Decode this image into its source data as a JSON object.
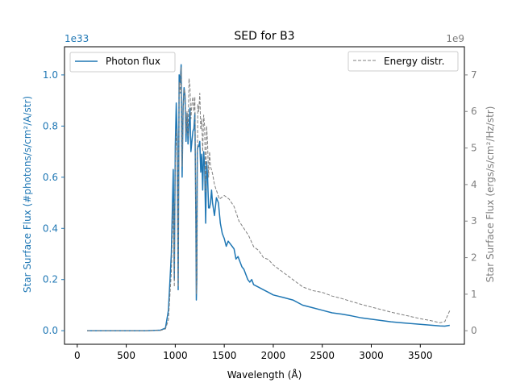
{
  "chart_data": {
    "type": "line",
    "title": "SED for B3",
    "xlabel": "Wavelength (Å)",
    "ylabel_left": "Star Surface Flux (#photons/s/cm²/A/str)",
    "ylabel_right": "Star Surface Flux (ergs/s/cm²/Hz/str)",
    "offset_left": "1e33",
    "offset_right": "1e9",
    "xlim": [
      -130,
      3950
    ],
    "ylim_left": [
      -0.053,
      1.11
    ],
    "ylim_right": [
      -0.37,
      7.77
    ],
    "x_ticks": [
      0,
      500,
      1000,
      1500,
      2000,
      2500,
      3000,
      3500
    ],
    "x_tick_labels": [
      "0",
      "500",
      "1000",
      "1500",
      "2000",
      "2500",
      "3000",
      "3500"
    ],
    "y_left_ticks": [
      0.0,
      0.2,
      0.4,
      0.6,
      0.8,
      1.0
    ],
    "y_left_tick_labels": [
      "0.0",
      "0.2",
      "0.4",
      "0.6",
      "0.8",
      "1.0"
    ],
    "y_right_ticks": [
      0,
      1,
      2,
      3,
      4,
      5,
      6,
      7
    ],
    "y_right_tick_labels": [
      "0",
      "1",
      "2",
      "3",
      "4",
      "5",
      "6",
      "7"
    ],
    "colors": {
      "left": "#1f77b4",
      "right": "#7f7f7f"
    },
    "series": [
      {
        "name": "Photon flux",
        "axis": "left",
        "style": "solid",
        "x": [
          100,
          300,
          500,
          700,
          850,
          900,
          930,
          960,
          980,
          990,
          1000,
          1010,
          1020,
          1030,
          1040,
          1050,
          1060,
          1070,
          1080,
          1090,
          1100,
          1110,
          1120,
          1130,
          1140,
          1150,
          1160,
          1170,
          1180,
          1190,
          1200,
          1210,
          1215,
          1220,
          1225,
          1230,
          1240,
          1250,
          1260,
          1270,
          1280,
          1290,
          1300,
          1310,
          1320,
          1330,
          1340,
          1350,
          1360,
          1370,
          1380,
          1400,
          1420,
          1440,
          1460,
          1480,
          1500,
          1520,
          1540,
          1560,
          1580,
          1600,
          1620,
          1640,
          1660,
          1680,
          1700,
          1720,
          1740,
          1760,
          1780,
          1800,
          1850,
          1900,
          1950,
          2000,
          2100,
          2200,
          2300,
          2400,
          2500,
          2600,
          2700,
          2800,
          2900,
          3000,
          3100,
          3200,
          3300,
          3400,
          3500,
          3600,
          3700,
          3750,
          3800
        ],
        "values": [
          0.0,
          0.0,
          0.0,
          0.0,
          0.002,
          0.01,
          0.08,
          0.3,
          0.63,
          0.2,
          0.72,
          0.89,
          0.75,
          0.16,
          1.0,
          0.97,
          1.04,
          0.6,
          0.87,
          0.95,
          0.92,
          0.74,
          0.85,
          0.73,
          0.8,
          0.87,
          0.7,
          0.74,
          0.78,
          0.79,
          0.85,
          0.45,
          0.12,
          0.2,
          0.7,
          0.72,
          0.72,
          0.74,
          0.62,
          0.69,
          0.55,
          0.7,
          0.64,
          0.42,
          0.66,
          0.6,
          0.48,
          0.48,
          0.5,
          0.55,
          0.5,
          0.45,
          0.52,
          0.5,
          0.42,
          0.38,
          0.36,
          0.33,
          0.35,
          0.34,
          0.33,
          0.32,
          0.28,
          0.29,
          0.27,
          0.25,
          0.24,
          0.22,
          0.2,
          0.19,
          0.2,
          0.18,
          0.17,
          0.16,
          0.15,
          0.14,
          0.13,
          0.12,
          0.1,
          0.09,
          0.08,
          0.07,
          0.065,
          0.058,
          0.05,
          0.045,
          0.04,
          0.035,
          0.031,
          0.028,
          0.025,
          0.022,
          0.019,
          0.018,
          0.021
        ]
      },
      {
        "name": "Energy distr.",
        "axis": "right",
        "style": "dashed",
        "x": [
          100,
          300,
          500,
          700,
          850,
          900,
          930,
          960,
          980,
          990,
          1000,
          1010,
          1020,
          1030,
          1040,
          1050,
          1060,
          1070,
          1080,
          1090,
          1100,
          1110,
          1120,
          1130,
          1140,
          1150,
          1160,
          1170,
          1180,
          1190,
          1200,
          1210,
          1215,
          1220,
          1230,
          1240,
          1250,
          1260,
          1270,
          1280,
          1290,
          1300,
          1310,
          1320,
          1330,
          1340,
          1350,
          1360,
          1380,
          1400,
          1450,
          1500,
          1550,
          1600,
          1650,
          1700,
          1750,
          1800,
          1850,
          1900,
          1950,
          2000,
          2100,
          2200,
          2300,
          2400,
          2500,
          2600,
          2700,
          2800,
          2900,
          3000,
          3100,
          3200,
          3300,
          3400,
          3500,
          3600,
          3700,
          3750,
          3800
        ],
        "values": [
          0.0,
          0.0,
          0.0,
          0.0,
          0.01,
          0.05,
          0.3,
          1.6,
          3.5,
          1.2,
          4.5,
          5.5,
          4.8,
          1.2,
          6.8,
          6.5,
          7.2,
          4.5,
          6.0,
          6.6,
          6.5,
          5.4,
          6.0,
          5.3,
          6.9,
          6.7,
          5.8,
          6.2,
          6.4,
          6.0,
          6.4,
          3.2,
          1.0,
          1.5,
          6.2,
          6.0,
          6.5,
          5.5,
          5.8,
          4.9,
          5.9,
          5.6,
          3.8,
          5.6,
          5.1,
          4.2,
          4.9,
          4.5,
          4.3,
          4.0,
          3.6,
          3.7,
          3.6,
          3.4,
          3.0,
          2.8,
          2.6,
          2.3,
          2.2,
          2.0,
          1.95,
          1.8,
          1.6,
          1.4,
          1.2,
          1.1,
          1.05,
          0.95,
          0.88,
          0.8,
          0.72,
          0.65,
          0.58,
          0.51,
          0.45,
          0.39,
          0.33,
          0.28,
          0.22,
          0.25,
          0.55
        ]
      }
    ]
  }
}
